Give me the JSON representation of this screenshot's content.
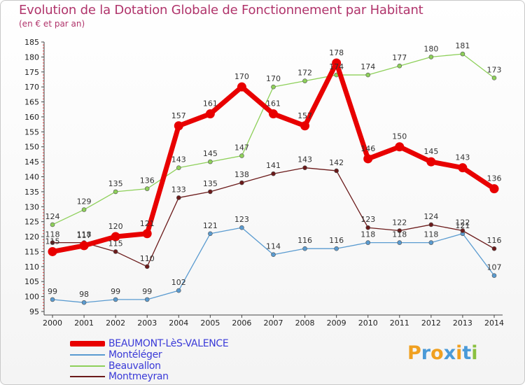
{
  "header": {
    "title": "Evolution de la Dotation Globale de Fonctionnement par Habitant",
    "subtitle": "(en € et par an)"
  },
  "logo": {
    "text": "Proxiti",
    "colors": [
      "#f0a020",
      "#4a9ad8",
      "#f0a020",
      "#4a9ad8",
      "#f0a020",
      "#4a9ad8",
      "#8ac040"
    ]
  },
  "chart_data": {
    "type": "line",
    "title": "Evolution de la Dotation Globale de Fonctionnement par Habitant",
    "subtitle": "(en € et par an)",
    "xlabel": "",
    "ylabel": "",
    "x": [
      "2000",
      "2001",
      "2002",
      "2003",
      "2004",
      "2005",
      "2006",
      "2007",
      "2008",
      "2009",
      "2010",
      "2011",
      "2012",
      "2013",
      "2014"
    ],
    "ylim": [
      95,
      185
    ],
    "yticks": [
      95,
      100,
      105,
      110,
      115,
      120,
      125,
      130,
      135,
      140,
      145,
      150,
      155,
      160,
      165,
      170,
      175,
      180,
      185
    ],
    "grid": false,
    "legend_position": "bottom-left",
    "series": [
      {
        "name": "BEAUMONT-LèS-VALENCE",
        "color": "#e80000",
        "emphasis": true,
        "values": [
          115,
          117,
          120,
          121,
          157,
          161,
          170,
          161,
          157,
          178,
          146,
          150,
          145,
          143,
          136
        ]
      },
      {
        "name": "Montéléger",
        "color": "#5a9bd0",
        "emphasis": false,
        "values": [
          99,
          98,
          99,
          99,
          102,
          121,
          123,
          114,
          116,
          116,
          118,
          118,
          118,
          121,
          107
        ]
      },
      {
        "name": "Beauvallon",
        "color": "#8ed05a",
        "emphasis": false,
        "values": [
          124,
          129,
          135,
          136,
          143,
          145,
          147,
          170,
          172,
          174,
          174,
          177,
          180,
          181,
          173
        ]
      },
      {
        "name": "Montmeyran",
        "color": "#6b1a1a",
        "emphasis": false,
        "values": [
          118,
          118,
          115,
          110,
          133,
          135,
          138,
          141,
          143,
          142,
          123,
          122,
          124,
          122,
          116
        ]
      }
    ]
  }
}
